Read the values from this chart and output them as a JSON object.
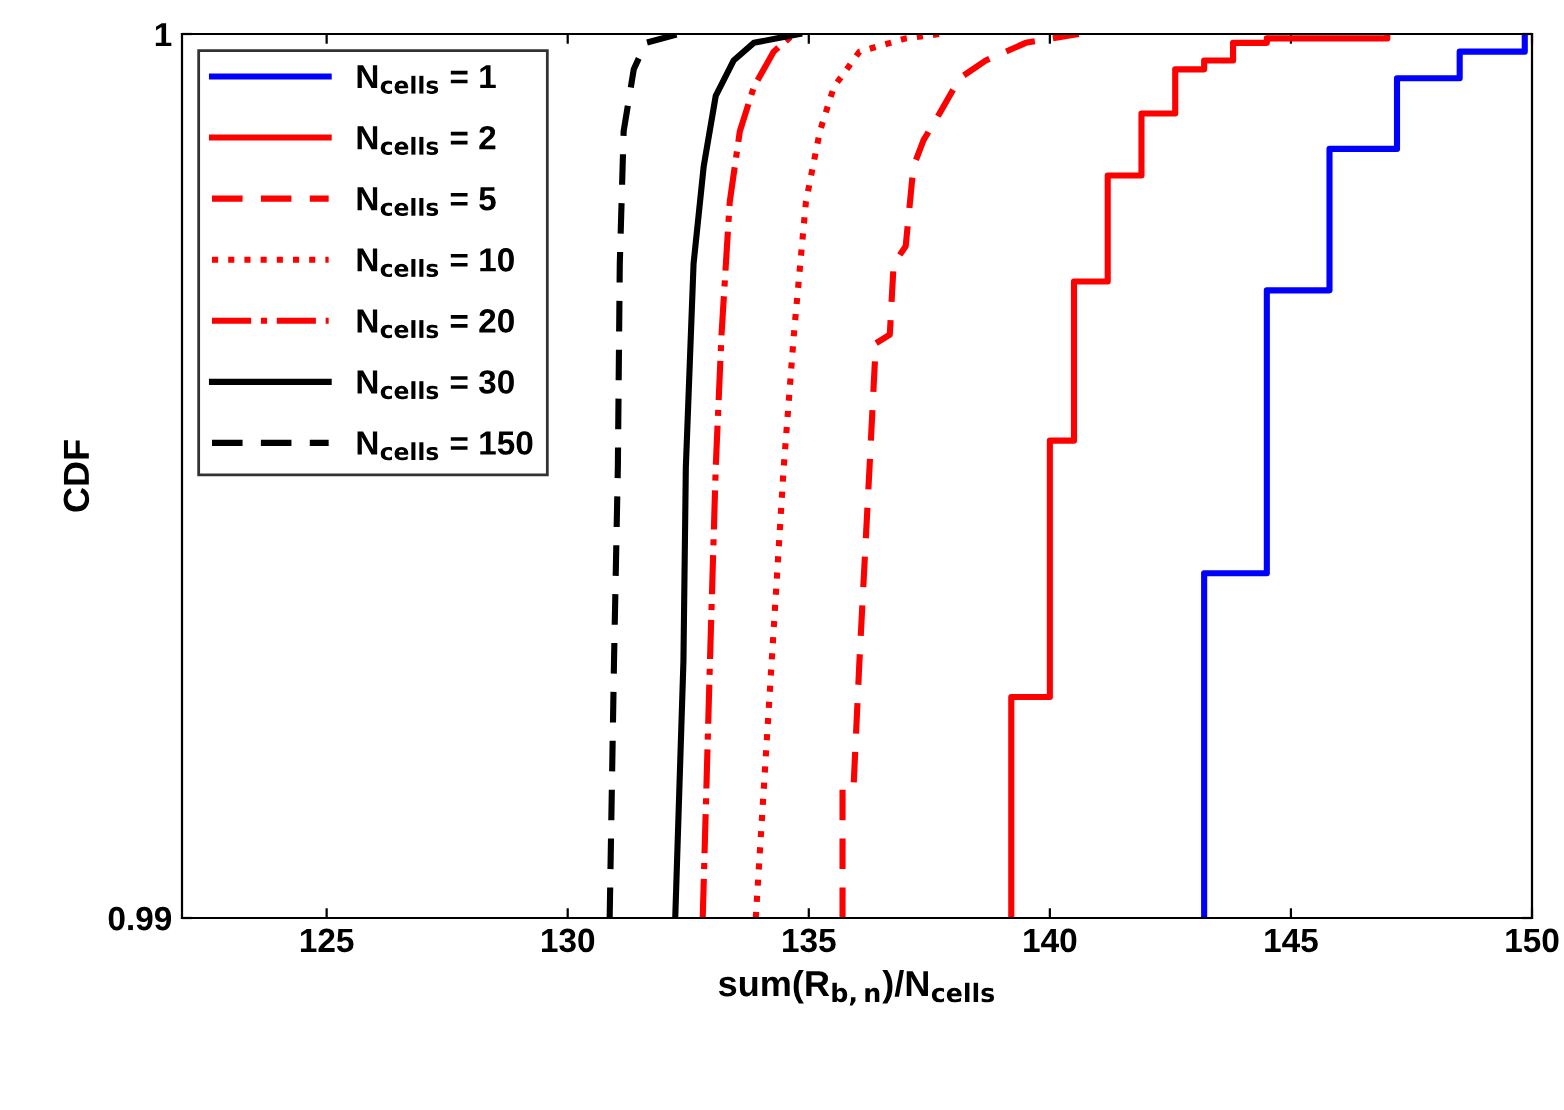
{
  "chart_data": {
    "type": "line",
    "xlabel": "sum(R$_{b,n}$)/N$_{cells}$",
    "ylabel": "CDF",
    "xlim": [
      122,
      150
    ],
    "xticks": [
      125,
      130,
      135,
      140,
      145,
      150
    ],
    "ylim": [
      0.99,
      1
    ],
    "yticks": [
      0.99,
      1
    ],
    "grid": false,
    "legend": "top left",
    "series": [
      {
        "name": "N$_{cells}$ = 1",
        "type": "step",
        "color": "#0000ff",
        "line_style": "solid",
        "x": [
          143.2,
          143.2,
          144.5,
          145.8,
          147.2,
          148.5,
          149.85
        ],
        "values": [
          0.99,
          0.9939,
          0.9971,
          0.9987,
          0.9995,
          0.9998,
          1.0
        ]
      },
      {
        "name": "N$_{cells}$ = 2",
        "type": "step",
        "color": "#ff0000",
        "line_style": "solid",
        "x": [
          139.2,
          139.2,
          140.0,
          140.5,
          141.2,
          141.9,
          142.6,
          143.2,
          143.8,
          144.5,
          147.0
        ],
        "values": [
          0.99,
          0.9925,
          0.9954,
          0.9972,
          0.9984,
          0.9991,
          0.9996,
          0.9997,
          0.9999,
          0.99995,
          1.0
        ]
      },
      {
        "name": "N$_{cells}$ = 5",
        "color": "#ff0000",
        "line_style": "dashed",
        "x": [
          135.7,
          135.7,
          135.93,
          136.05,
          136.26,
          136.39,
          136.68,
          136.76,
          137.01,
          137.17,
          137.38,
          137.71,
          138.13,
          138.67,
          139.5,
          140.6
        ],
        "values": [
          0.99,
          0.9915,
          0.9915,
          0.9929,
          0.9951,
          0.9965,
          0.9966,
          0.9974,
          0.9976,
          0.9985,
          0.9988,
          0.9991,
          0.9995,
          0.9997,
          0.9999,
          1.0
        ]
      },
      {
        "name": "N$_{cells}$ = 10",
        "color": "#ff0000",
        "line_style": "dotted",
        "x": [
          133.9,
          134.23,
          134.48,
          134.69,
          134.94,
          135.23,
          135.52,
          136.05,
          137.01,
          137.71
        ],
        "values": [
          0.99,
          0.9929,
          0.9951,
          0.9966,
          0.9981,
          0.9989,
          0.9994,
          0.9998,
          0.99995,
          1.0
        ]
      },
      {
        "name": "N$_{cells}$ = 20",
        "color": "#ff0000",
        "line_style": "dashdot",
        "x": [
          132.8,
          132.95,
          133.07,
          133.19,
          133.36,
          133.57,
          133.86,
          134.27,
          134.69
        ],
        "values": [
          0.99,
          0.9929,
          0.9951,
          0.9966,
          0.9981,
          0.9989,
          0.9994,
          0.9998,
          1.0
        ]
      },
      {
        "name": "N$_{cells}$ = 30",
        "color": "#000000",
        "line_style": "solid",
        "x": [
          132.23,
          132.4,
          132.45,
          132.61,
          132.82,
          133.07,
          133.44,
          133.86,
          134.8
        ],
        "values": [
          0.99,
          0.9929,
          0.9951,
          0.9974,
          0.9985,
          0.9993,
          0.9997,
          0.9999,
          1.0
        ]
      },
      {
        "name": "N$_{cells}$ = 150",
        "color": "#000000",
        "line_style": "dashed",
        "x": [
          130.87,
          130.96,
          131.04,
          131.08,
          131.16,
          131.37,
          131.62,
          132.3
        ],
        "values": [
          0.99,
          0.9929,
          0.9951,
          0.9974,
          0.9989,
          0.9996,
          0.9999,
          1.0
        ]
      }
    ]
  }
}
